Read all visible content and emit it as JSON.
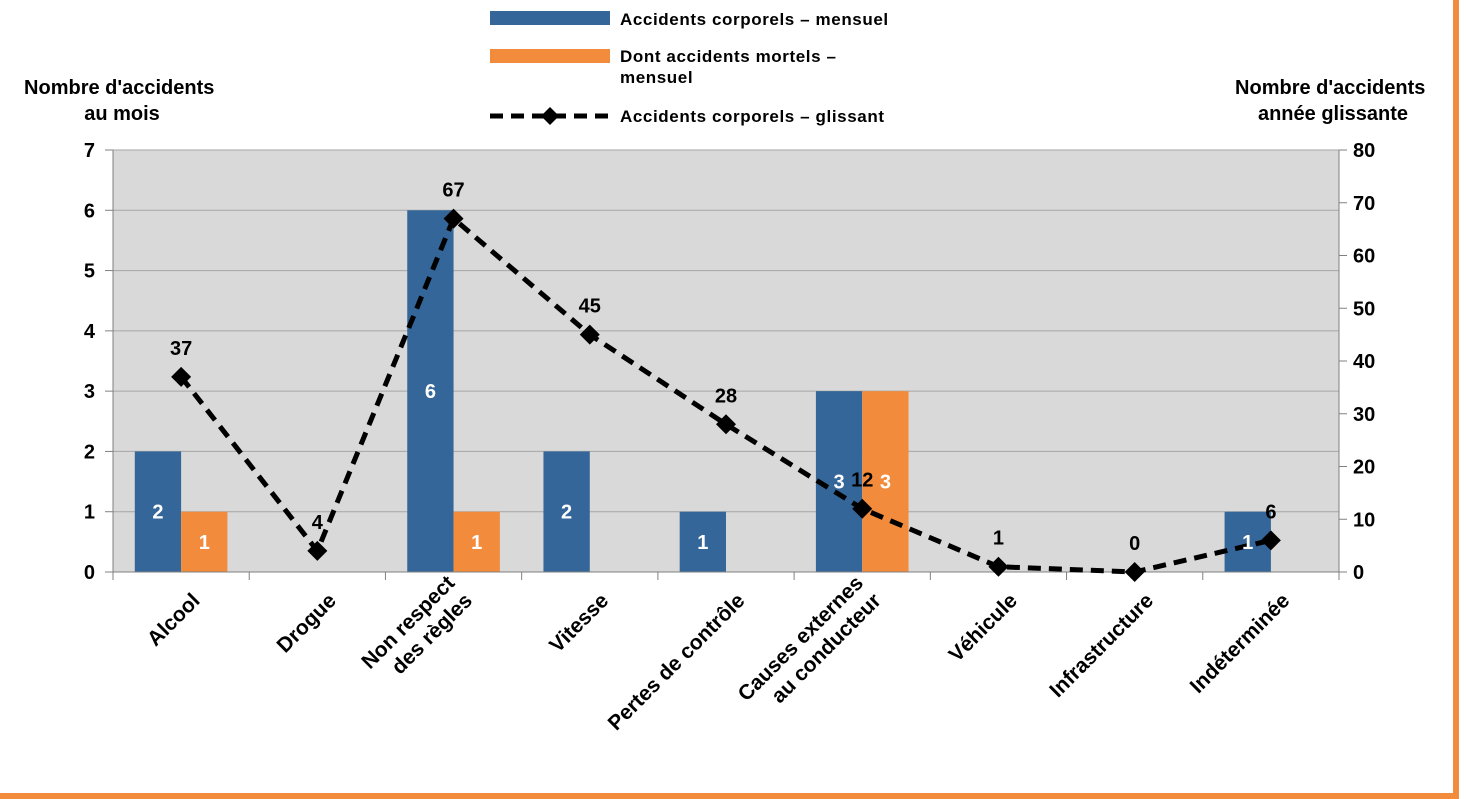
{
  "colors": {
    "plot_bg": "#d9d9d9",
    "series_monthly": "#346699",
    "series_fatal": "#f28c3c",
    "series_rolling": "#000000",
    "frame": "#f28c3c",
    "grid": "#a6a6a6"
  },
  "chart_data": {
    "type": "bar",
    "categories": [
      [
        "Alcool"
      ],
      [
        "Drogue"
      ],
      [
        "Non respect",
        "des règles"
      ],
      [
        "Vitesse"
      ],
      [
        "Pertes de contrôle"
      ],
      [
        "Causes externes",
        "au conducteur"
      ],
      [
        "Véhicule"
      ],
      [
        "Infrastructure"
      ],
      [
        "Indéterminée"
      ]
    ],
    "series": [
      {
        "name": "Accidents corporels – mensuel",
        "kind": "bar",
        "axis": "left",
        "values": [
          2,
          0,
          6,
          2,
          1,
          3,
          0,
          0,
          1
        ]
      },
      {
        "name": "Dont accidents mortels – mensuel",
        "kind": "bar",
        "axis": "left",
        "values": [
          1,
          0,
          1,
          0,
          0,
          3,
          0,
          0,
          0
        ]
      },
      {
        "name": "Accidents corporels – glissant",
        "kind": "line",
        "axis": "right",
        "line_style": "dashed",
        "marker": "diamond",
        "values": [
          37,
          4,
          67,
          45,
          28,
          12,
          1,
          0,
          6
        ]
      }
    ],
    "ylabel_left": [
      "Nombre d'accidents",
      "au mois"
    ],
    "ylabel_right": [
      "Nombre d'accidents",
      "année glissante"
    ],
    "ylim_left": [
      0,
      7
    ],
    "yticks_left": [
      0,
      1,
      2,
      3,
      4,
      5,
      6,
      7
    ],
    "ylim_right": [
      0,
      80
    ],
    "yticks_right": [
      0,
      10,
      20,
      30,
      40,
      50,
      60,
      70,
      80
    ],
    "grid": true,
    "legend_position": "top-center"
  }
}
